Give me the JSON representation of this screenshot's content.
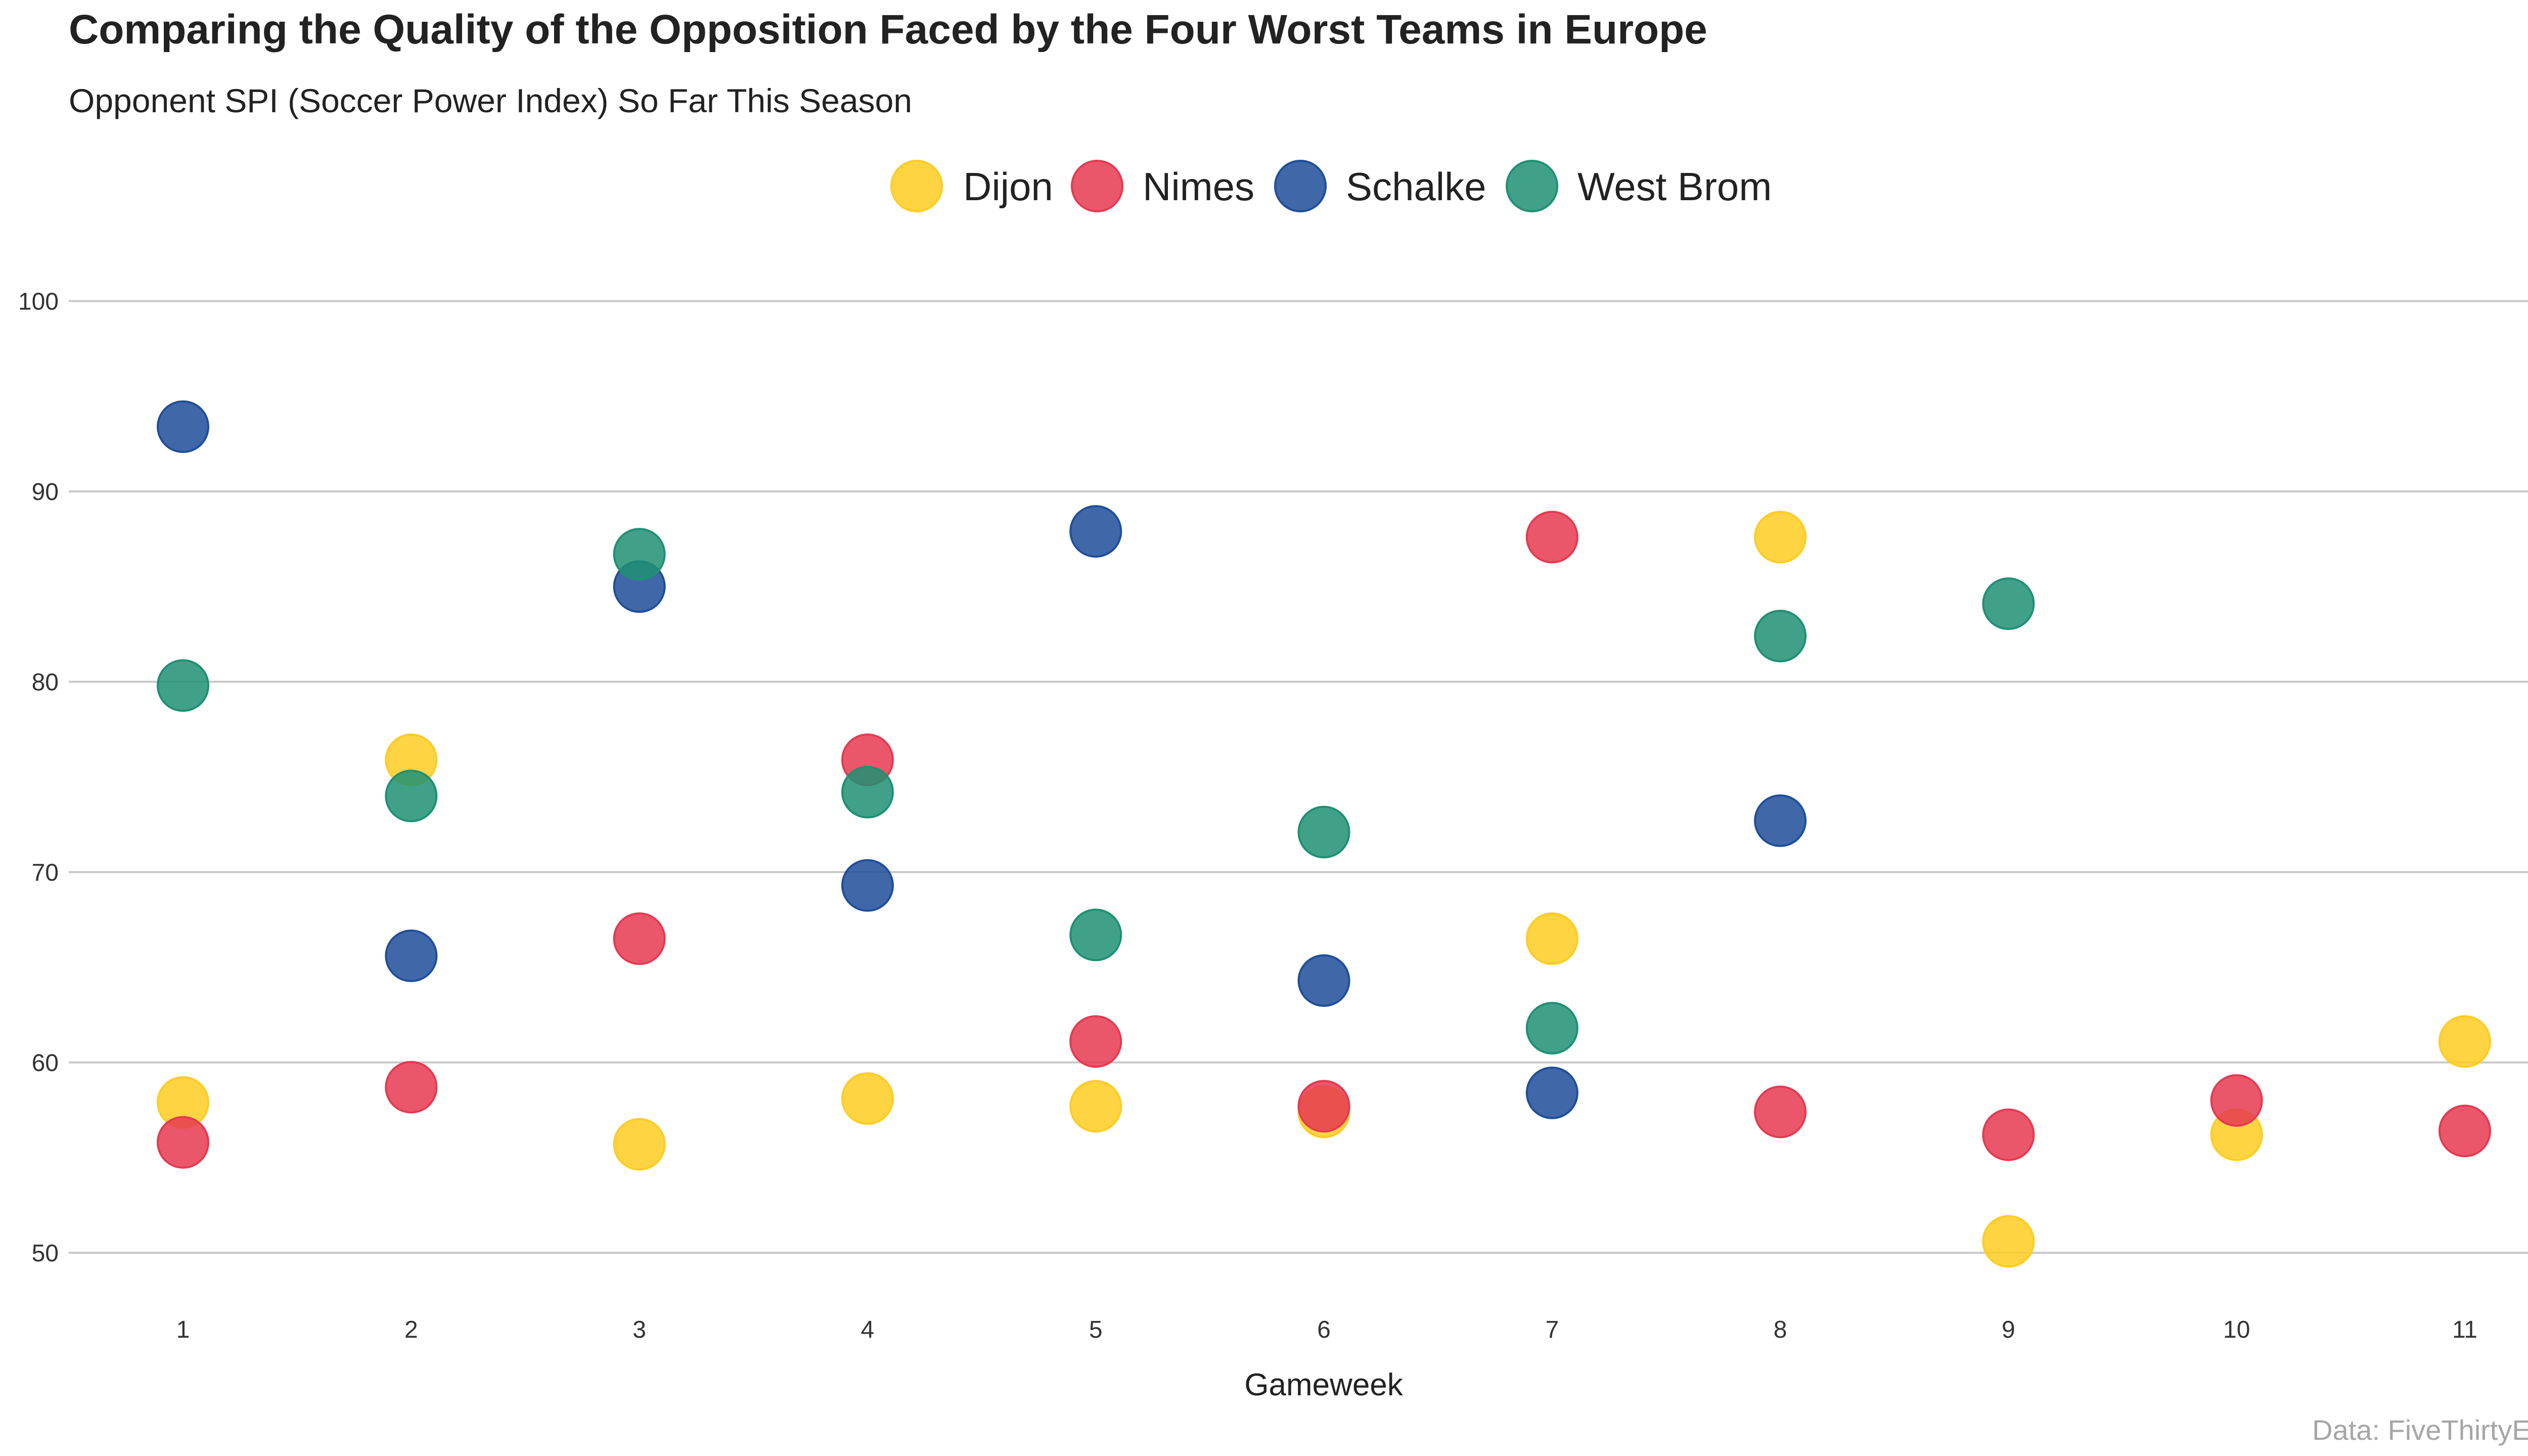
{
  "chart_data": {
    "type": "scatter",
    "title": "Comparing the Quality of the Opposition Faced by the Four Worst Teams in Europe",
    "subtitle": "Opponent SPI (Soccer Power Index) So Far This Season",
    "xlabel": "Gameweek",
    "ylabel": "",
    "caption": "Data: FiveThirtyEight",
    "x_ticks": [
      1,
      2,
      3,
      4,
      5,
      6,
      7,
      8,
      9,
      10,
      11
    ],
    "y_ticks": [
      50,
      60,
      70,
      80,
      90,
      100
    ],
    "xlim": [
      0.5,
      11.5
    ],
    "ylim": [
      47,
      102
    ],
    "grid": "horizontal",
    "legend_position": "top",
    "series": [
      {
        "name": "Dijon",
        "color": "#FFCC22",
        "points": [
          {
            "x": 1,
            "y": 57.9
          },
          {
            "x": 2,
            "y": 75.9
          },
          {
            "x": 3,
            "y": 55.7
          },
          {
            "x": 4,
            "y": 58.1
          },
          {
            "x": 5,
            "y": 57.7
          },
          {
            "x": 6,
            "y": 57.4
          },
          {
            "x": 7,
            "y": 66.5
          },
          {
            "x": 8,
            "y": 87.6
          },
          {
            "x": 9,
            "y": 50.6
          },
          {
            "x": 10,
            "y": 56.2
          },
          {
            "x": 11,
            "y": 61.1
          }
        ]
      },
      {
        "name": "Nimes",
        "color": "#E63950",
        "points": [
          {
            "x": 1,
            "y": 55.8
          },
          {
            "x": 2,
            "y": 58.7
          },
          {
            "x": 3,
            "y": 66.5
          },
          {
            "x": 4,
            "y": 75.9
          },
          {
            "x": 5,
            "y": 61.1
          },
          {
            "x": 6,
            "y": 57.7
          },
          {
            "x": 7,
            "y": 87.6
          },
          {
            "x": 8,
            "y": 57.4
          },
          {
            "x": 9,
            "y": 56.2
          },
          {
            "x": 10,
            "y": 58.0
          },
          {
            "x": 11,
            "y": 56.4
          }
        ]
      },
      {
        "name": "Schalke",
        "color": "#1F4E9A",
        "points": [
          {
            "x": 1,
            "y": 93.4
          },
          {
            "x": 2,
            "y": 65.6
          },
          {
            "x": 3,
            "y": 85.0
          },
          {
            "x": 4,
            "y": 69.3
          },
          {
            "x": 5,
            "y": 87.9
          },
          {
            "x": 6,
            "y": 64.3
          },
          {
            "x": 7,
            "y": 58.4
          },
          {
            "x": 8,
            "y": 72.7
          }
        ]
      },
      {
        "name": "West Brom",
        "color": "#1E9073",
        "points": [
          {
            "x": 1,
            "y": 79.8
          },
          {
            "x": 2,
            "y": 74.0
          },
          {
            "x": 3,
            "y": 86.7
          },
          {
            "x": 4,
            "y": 74.2
          },
          {
            "x": 5,
            "y": 66.7
          },
          {
            "x": 6,
            "y": 72.1
          },
          {
            "x": 7,
            "y": 61.8
          },
          {
            "x": 8,
            "y": 82.4
          },
          {
            "x": 9,
            "y": 84.1
          }
        ]
      }
    ]
  }
}
